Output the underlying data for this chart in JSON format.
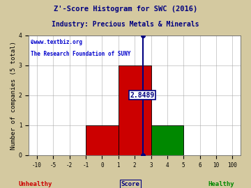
{
  "title": "Z'-Score Histogram for SWC (2016)",
  "subtitle": "Industry: Precious Metals & Minerals",
  "watermark1": "©www.textbiz.org",
  "watermark2": "The Research Foundation of SUNY",
  "xlabel_center": "Score",
  "xlabel_left": "Unhealthy",
  "xlabel_right": "Healthy",
  "ylabel": "Number of companies (5 total)",
  "xtick_labels": [
    "-10",
    "-5",
    "-2",
    "-1",
    "0",
    "1",
    "2",
    "3",
    "4",
    "5",
    "6",
    "10",
    "100"
  ],
  "xtick_indices": [
    0,
    1,
    2,
    3,
    4,
    5,
    6,
    7,
    8,
    9,
    10,
    11,
    12
  ],
  "bars": [
    {
      "x_left_idx": 3,
      "x_right_idx": 5,
      "height": 1,
      "color": "#cc0000"
    },
    {
      "x_left_idx": 5,
      "x_right_idx": 7,
      "height": 3,
      "color": "#cc0000"
    },
    {
      "x_left_idx": 7,
      "x_right_idx": 9,
      "height": 1,
      "color": "#008800"
    }
  ],
  "score_line_idx": 6.5,
  "score_line_ymin": 0,
  "score_line_ymax": 4,
  "score_crossbar_y": 2.0,
  "score_label": "2.8489",
  "ylim": [
    0,
    4
  ],
  "yticks": [
    0,
    1,
    2,
    3,
    4
  ],
  "bg_color": "#d4c9a0",
  "plot_bg_color": "#ffffff",
  "grid_color": "#aaaaaa",
  "title_color": "#000080",
  "subtitle_color": "#000080",
  "watermark_color": "#0000cc",
  "bar_edge_color": "#000000",
  "unhealthy_color": "#cc0000",
  "healthy_color": "#008800",
  "score_line_color": "#000080",
  "annotation_color": "#000080",
  "annotation_bg": "#ffffff",
  "title_fontsize": 7.5,
  "subtitle_fontsize": 7,
  "watermark_fontsize": 5.5,
  "label_fontsize": 6.5,
  "tick_fontsize": 5.5,
  "annotation_fontsize": 7
}
